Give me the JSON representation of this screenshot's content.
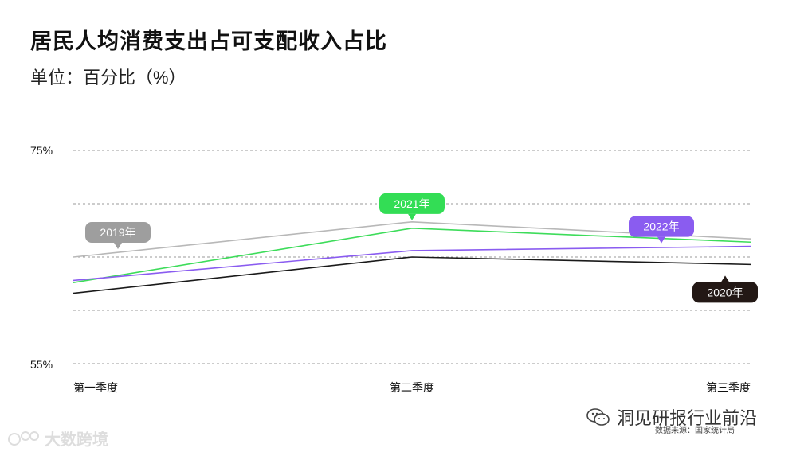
{
  "title": "居民人均消费支出占可支配收入占比",
  "subtitle": "单位：百分比（%）",
  "chart_data": {
    "type": "line",
    "categories": [
      "第一季度",
      "第二季度",
      "第三季度"
    ],
    "ylim": [
      55,
      75
    ],
    "y_tick_labels": [
      "75%",
      "55%"
    ],
    "grid": true,
    "series": [
      {
        "name": "2019年",
        "values": [
          65.0,
          68.3,
          66.7
        ],
        "color": "#b8b8b8",
        "label_bg": "#9e9e9e",
        "label_at": 0,
        "label_side": "above"
      },
      {
        "name": "2020年",
        "values": [
          61.6,
          65.0,
          64.3
        ],
        "color": "#1a1a1a",
        "label_bg": "#231815",
        "label_at": 2,
        "label_side": "below"
      },
      {
        "name": "2021年",
        "values": [
          62.6,
          67.7,
          66.4
        ],
        "color": "#3ddc5a",
        "label_bg": "#33dd55",
        "label_at": 1,
        "label_side": "above"
      },
      {
        "name": "2022年",
        "values": [
          62.8,
          65.6,
          66.0
        ],
        "color": "#8a5cf0",
        "label_bg": "#8a5cf0",
        "label_at": 2,
        "label_side": "above"
      }
    ]
  },
  "source": "数据来源：国家统计局",
  "watermark_right": "洞见研报行业前沿",
  "watermark_left": "大数跨境"
}
